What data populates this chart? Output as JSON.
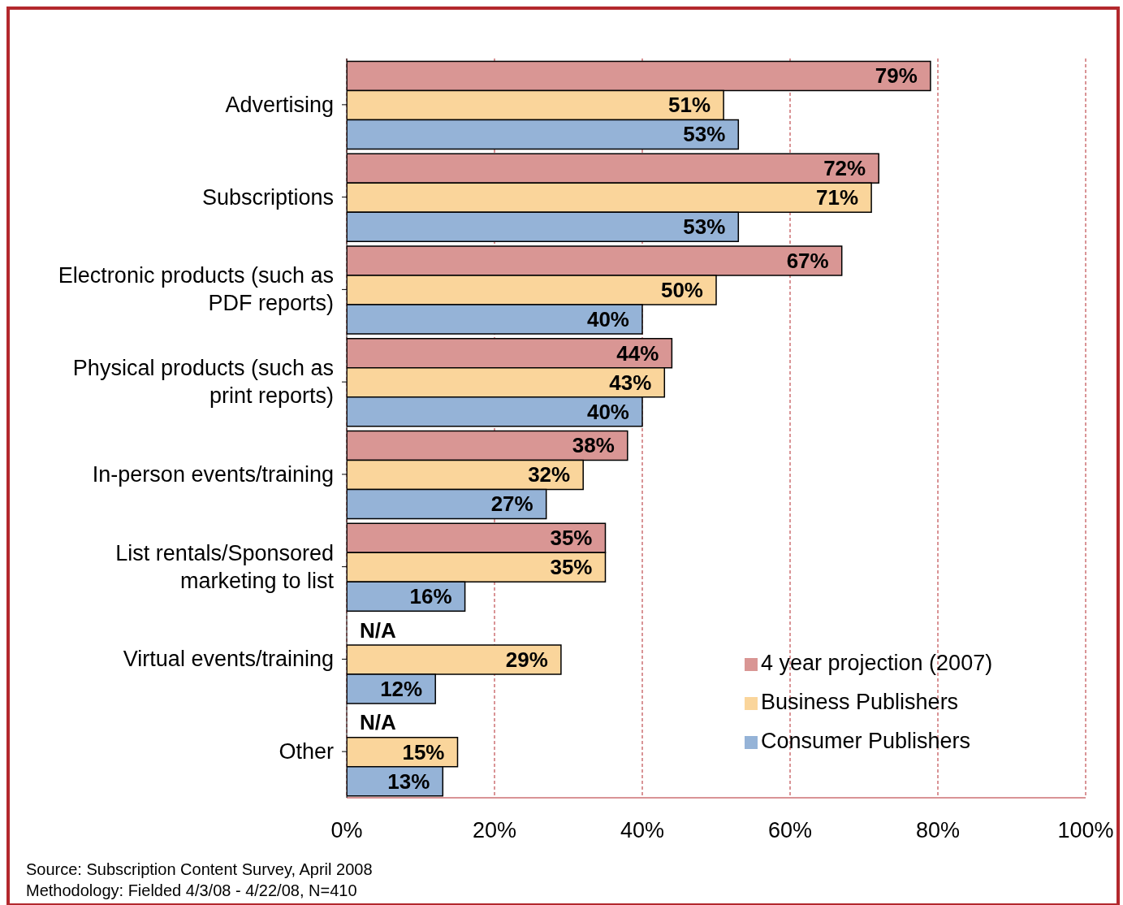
{
  "chart_data": {
    "type": "bar",
    "orientation": "horizontal",
    "categories": [
      "Advertising",
      "Subscriptions",
      "Electronic products (such as PDF reports)",
      "Physical products (such as print reports)",
      "In-person events/training",
      "List rentals/Sponsored marketing to list",
      "Virtual events/training",
      "Other"
    ],
    "series": [
      {
        "name": "4 year projection  (2007)",
        "color": "#d99694",
        "values": [
          79,
          72,
          67,
          44,
          38,
          35,
          null,
          null
        ],
        "value_labels": [
          "79%",
          "72%",
          "67%",
          "44%",
          "38%",
          "35%",
          "N/A",
          "N/A"
        ]
      },
      {
        "name": "Business Publishers",
        "color": "#fad59b",
        "values": [
          51,
          71,
          50,
          43,
          32,
          35,
          29,
          15
        ],
        "value_labels": [
          "51%",
          "71%",
          "50%",
          "43%",
          "32%",
          "35%",
          "29%",
          "15%"
        ]
      },
      {
        "name": "Consumer Publishers",
        "color": "#95b3d7",
        "values": [
          53,
          53,
          40,
          40,
          27,
          16,
          12,
          13
        ],
        "value_labels": [
          "53%",
          "53%",
          "40%",
          "40%",
          "27%",
          "16%",
          "12%",
          "13%"
        ]
      }
    ],
    "xlim": [
      0,
      100
    ],
    "xticks": [
      {
        "value": 0,
        "label": "0%"
      },
      {
        "value": 20,
        "label": "20%"
      },
      {
        "value": 40,
        "label": "40%"
      },
      {
        "value": 60,
        "label": "60%"
      },
      {
        "value": 80,
        "label": "80%"
      },
      {
        "value": 100,
        "label": "100%"
      }
    ],
    "grid": "x",
    "legend": "bottom right",
    "annotations": [
      "Source: Subscription Content Survey, April 2008",
      "Methodology: Fielded 4/3/08 - 4/22/08, N=410"
    ]
  }
}
